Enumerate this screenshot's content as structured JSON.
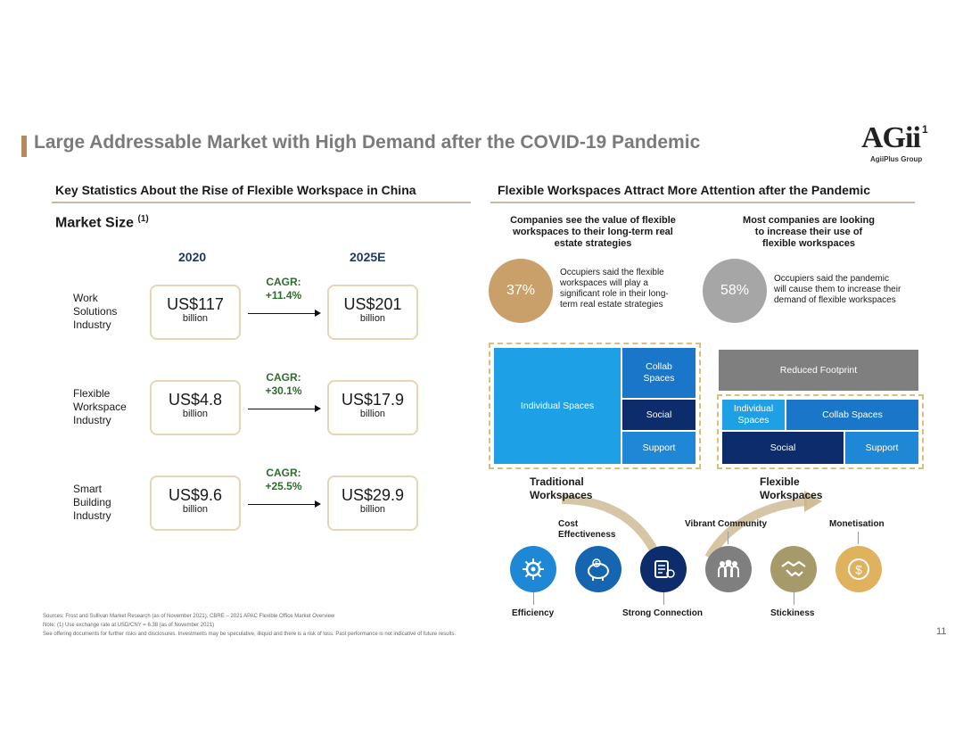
{
  "header": {
    "title": "Large Addressable Market with High Demand after the COVID-19 Pandemic",
    "logo_text": "AGii",
    "logo_sup": "1",
    "logo_sub": "AgiiPlus Group"
  },
  "left": {
    "heading": "Key Statistics About the Rise of Flexible Workspace in China",
    "market_size": "Market Size",
    "market_size_sup": "(1)",
    "year_a": "2020",
    "year_b": "2025E",
    "rows": [
      {
        "label": [
          "Work",
          "Solutions",
          "Industry"
        ],
        "v2020": "US$117",
        "v2025": "US$201",
        "unit": "billion",
        "cagr_label": "CAGR:",
        "cagr": "+11.4%"
      },
      {
        "label": [
          "Flexible",
          "Workspace",
          "Industry"
        ],
        "v2020": "US$4.8",
        "v2025": "US$17.9",
        "unit": "billion",
        "cagr_label": "CAGR:",
        "cagr": "+30.1%"
      },
      {
        "label": [
          "Smart",
          "Building",
          "Industry"
        ],
        "v2020": "US$9.6",
        "v2025": "US$29.9",
        "unit": "billion",
        "cagr_label": "CAGR:",
        "cagr": "+25.5%"
      }
    ]
  },
  "right": {
    "heading": "Flexible Workspaces Attract More Attention after the Pandemic",
    "stat1": {
      "head": [
        "Companies see the value of flexible",
        "workspaces to their long-term real",
        "estate strategies"
      ],
      "pct": "37%",
      "desc": [
        "Occupiers said the flexible",
        "workspaces will play a",
        "significant role in their long-",
        "term real estate strategies"
      ],
      "color": "#c9a06a"
    },
    "stat2": {
      "head": [
        "Most companies are looking",
        "to increase their use of",
        "flexible workspaces"
      ],
      "pct": "58%",
      "desc": [
        "Occupiers said the pandemic",
        "will cause them to increase their",
        "demand of flexible workspaces"
      ],
      "color": "#a6a6a6"
    },
    "traditional": {
      "individual": "Individual Spaces",
      "collab": [
        "Collab",
        "Spaces"
      ],
      "social": "Social",
      "support": "Support",
      "label": [
        "Traditional",
        "Workspaces"
      ]
    },
    "flexible": {
      "reduced": "Reduced Footprint",
      "individual": [
        "Individual",
        "Spaces"
      ],
      "collab": "Collab Spaces",
      "social": "Social",
      "support": "Support",
      "label": [
        "Flexible",
        "Workspaces"
      ]
    },
    "features_top": {
      "cost": [
        "Cost",
        "Effectiveness"
      ],
      "vibrant": "Vibrant Community",
      "monetisation": "Monetisation"
    },
    "features_bottom": {
      "efficiency": "Efficiency",
      "connection": "Strong Connection",
      "stickiness": "Stickiness"
    },
    "icons": [
      {
        "name": "gear-circuit-icon",
        "color": "#1e88d6"
      },
      {
        "name": "piggy-bank-icon",
        "color": "#1565b0"
      },
      {
        "name": "network-device-icon",
        "color": "#0d2c6b"
      },
      {
        "name": "community-icon",
        "color": "#7f7f7f"
      },
      {
        "name": "handshake-icon",
        "color": "#a69a6a"
      },
      {
        "name": "dollar-coin-icon",
        "color": "#e0b25e"
      }
    ]
  },
  "footer": {
    "lines": [
      "Sources: Frost and Sullivan Market Research (as of November 2021), CBRE – 2021 APAC Flexible Office Market Overview",
      "Note: (1) Use exchange rate at USD/CNY = 6.38 (as of November 2021)",
      "See offering documents for further risks and disclosures. Investments may be speculative, illiquid and there is a risk of loss. Past performance is not indicative of future results."
    ],
    "page": "11"
  }
}
